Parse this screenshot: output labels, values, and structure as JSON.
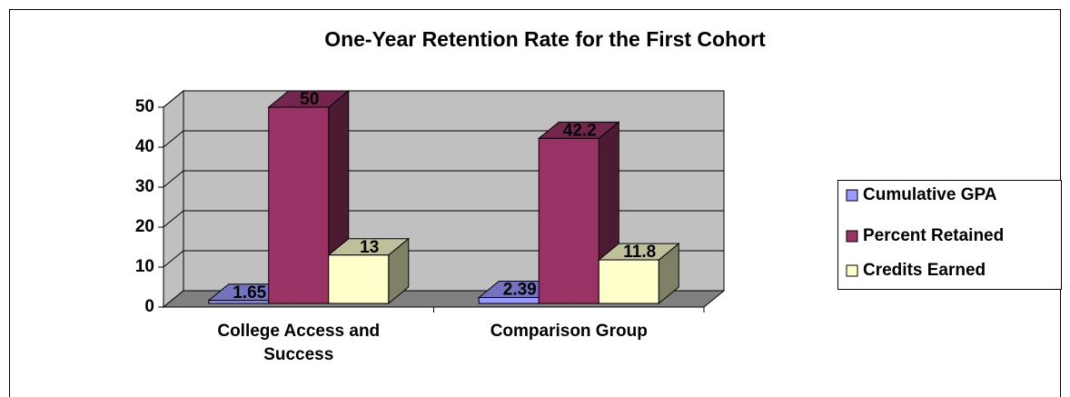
{
  "chart_data": {
    "type": "bar3d",
    "title": "One-Year Retention Rate for the First Cohort",
    "categories": [
      "College Access and Success",
      "Comparison Group"
    ],
    "series": [
      {
        "name": "Cumulative GPA",
        "color": "#9999ff",
        "values": [
          1.65,
          2.39
        ]
      },
      {
        "name": "Percent Retained",
        "color": "#993366",
        "values": [
          50,
          42.2
        ]
      },
      {
        "name": "Credits Earned",
        "color": "#ffffcc",
        "values": [
          13,
          11.8
        ]
      }
    ],
    "ylim": [
      0,
      50
    ],
    "yticks": [
      0,
      10,
      20,
      30,
      40,
      50
    ],
    "grid": true,
    "legend": "right"
  }
}
